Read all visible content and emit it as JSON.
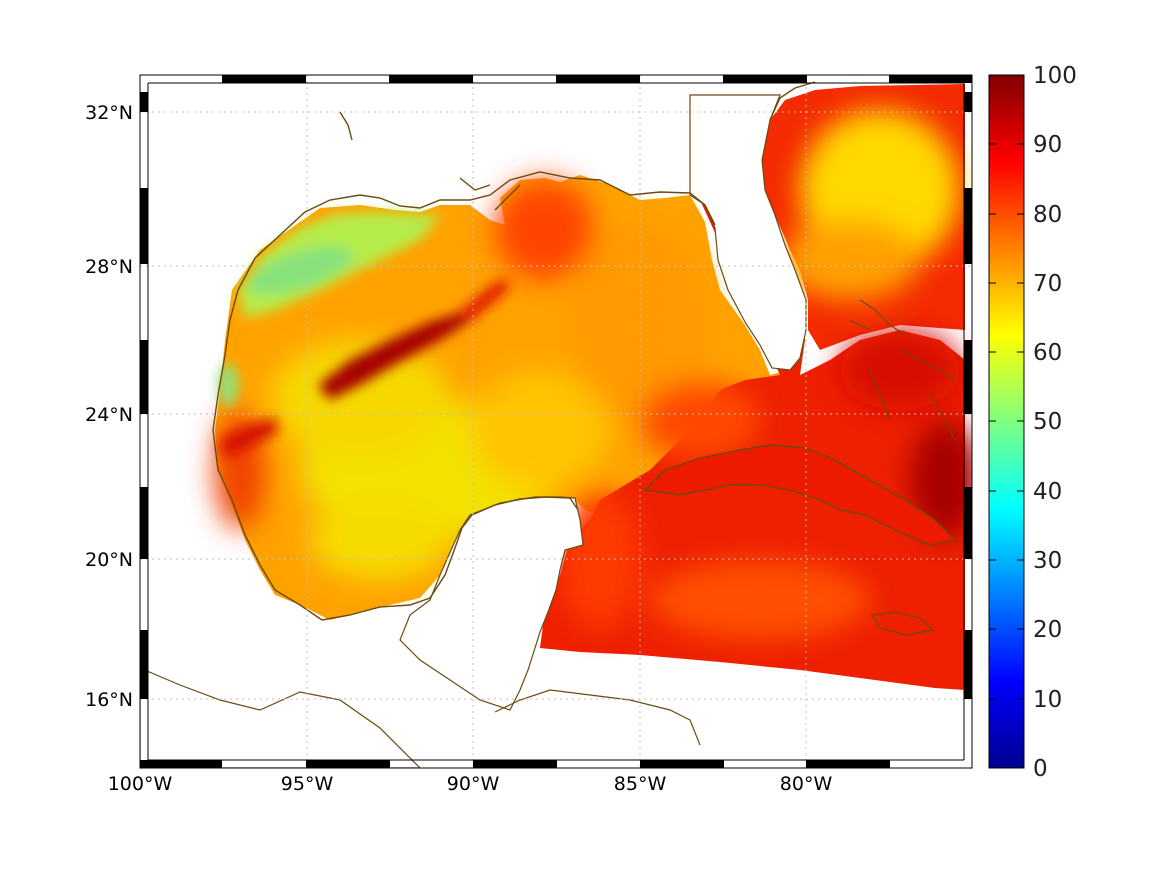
{
  "map": {
    "lon_labels": [
      "100°W",
      "95°W",
      "90°W",
      "85°W",
      "80°W"
    ],
    "lat_labels": [
      "32°N",
      "28°N",
      "24°N",
      "20°N",
      "16°N"
    ],
    "coastline_color": "#6b4a10",
    "land_color": "#ffffff",
    "grid_style": "dotted",
    "frame_style": "black-white alternating border"
  },
  "colorbar": {
    "ticks": [
      "100",
      "90",
      "80",
      "70",
      "60",
      "50",
      "40",
      "30",
      "20",
      "10",
      "0"
    ],
    "min": 0,
    "max": 100,
    "colormap": "jet",
    "stops": [
      "#00008f",
      "#0000ff",
      "#0080ff",
      "#00ffff",
      "#80ff80",
      "#ffff00",
      "#ff8000",
      "#ff0000",
      "#800000"
    ]
  },
  "field": {
    "dominant_colors": {
      "high": "#b00000",
      "red": "#ee1a00",
      "orange_red": "#ff5a00",
      "orange": "#ff9800",
      "yellow_orange": "#ffbf00",
      "yellow": "#f2e400",
      "lime": "#b8f03a",
      "green": "#7ee87a"
    }
  }
}
